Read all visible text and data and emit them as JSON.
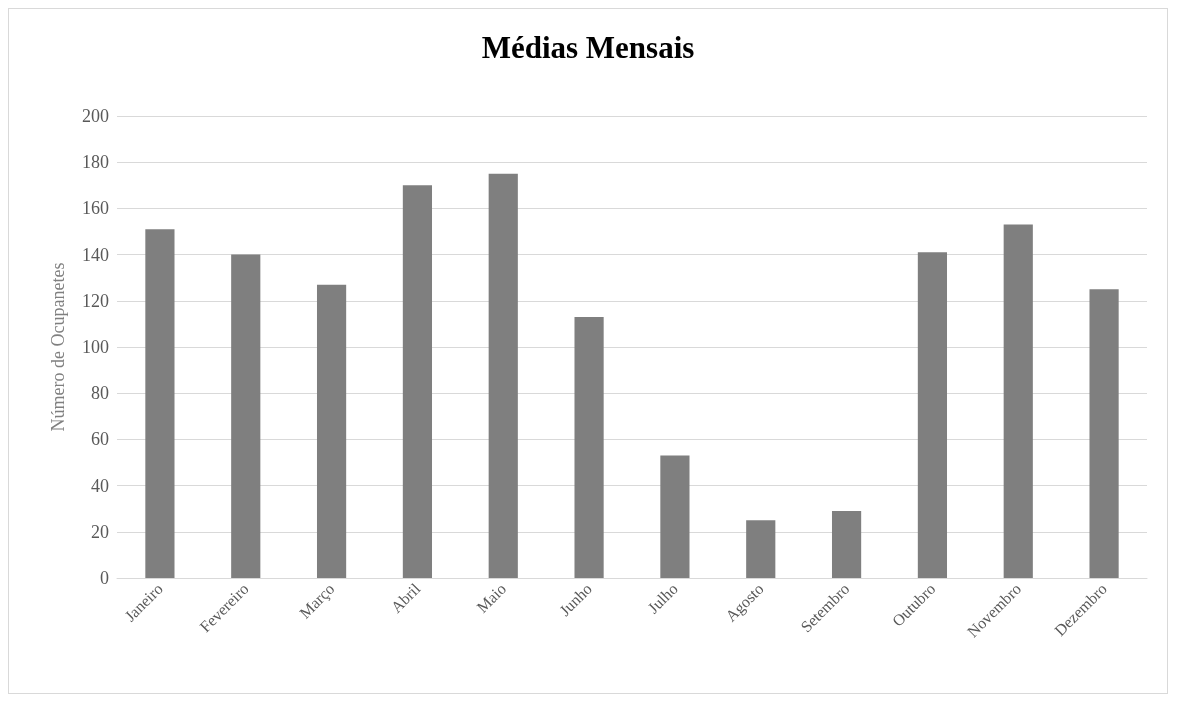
{
  "chart_data": {
    "type": "bar",
    "title": "Médias Mensais",
    "ylabel": "Número de Ocupanetes",
    "categories": [
      "Janeiro",
      "Fevereiro",
      "Março",
      "Abril",
      "Maio",
      "Junho",
      "Julho",
      "Agosto",
      "Setembro",
      "Outubro",
      "Novembro",
      "Dezembro"
    ],
    "values": [
      151,
      140,
      127,
      170,
      175,
      113,
      53,
      25,
      29,
      141,
      153,
      125
    ],
    "color": "#7f7f7f",
    "ylim": [
      0,
      200
    ],
    "yticks": [
      0,
      20,
      40,
      60,
      80,
      100,
      120,
      140,
      160,
      180,
      200
    ],
    "grid": "y"
  }
}
